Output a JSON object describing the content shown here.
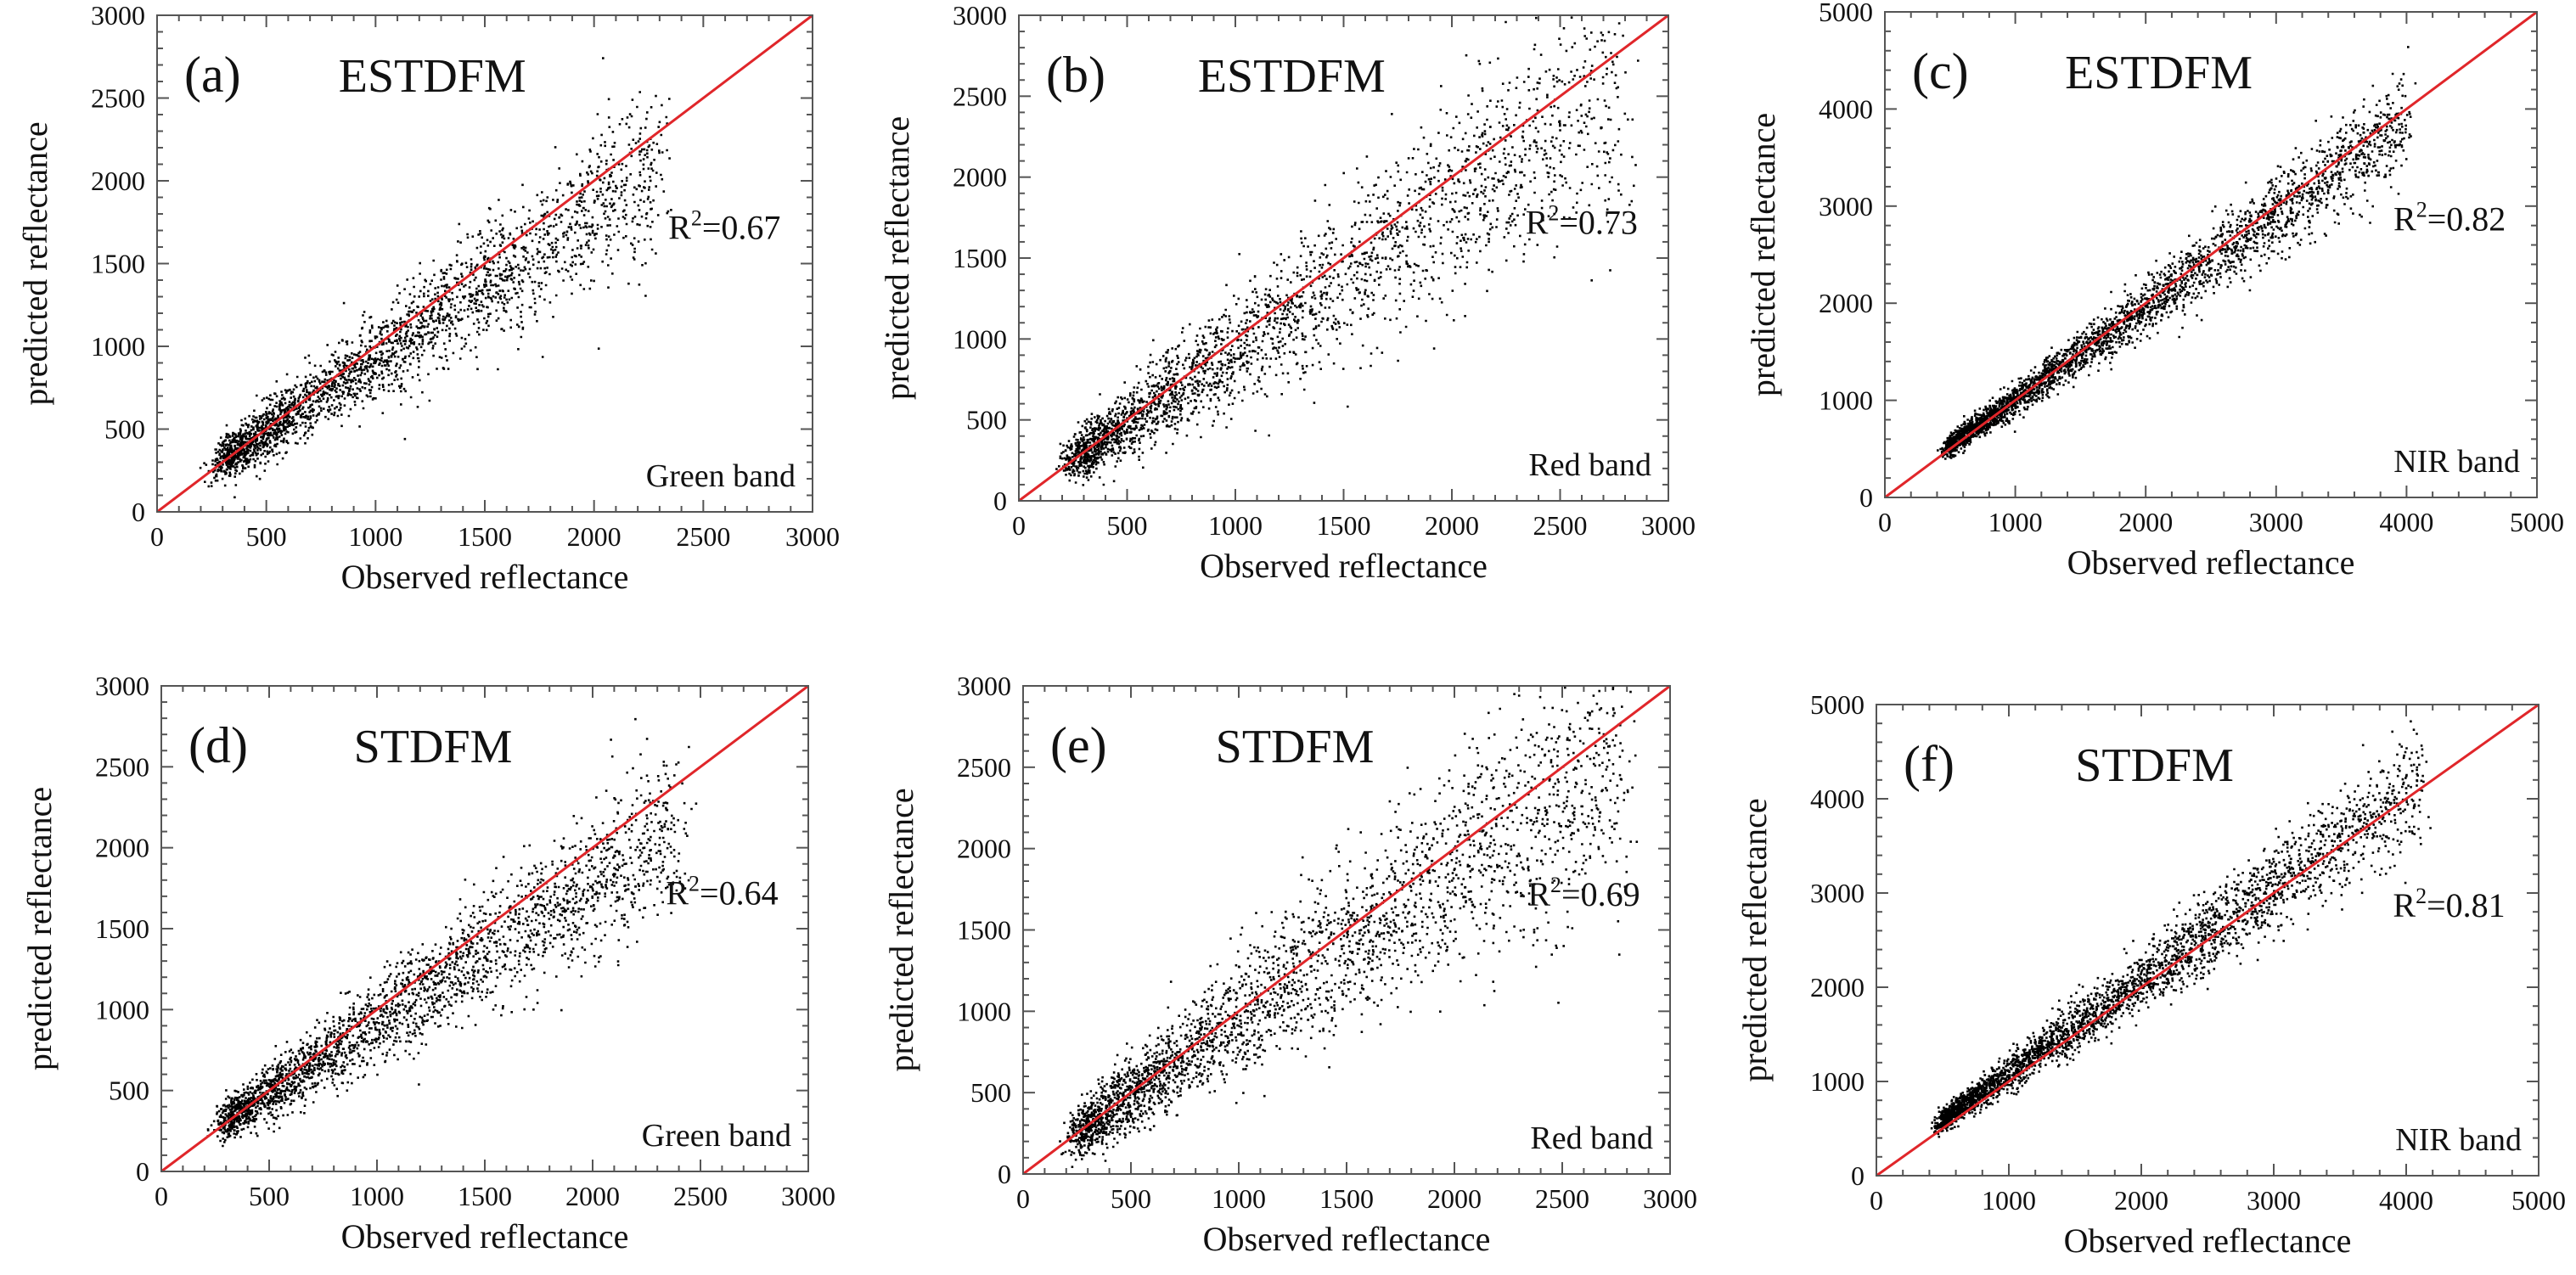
{
  "figure": {
    "panels_note": ""
  },
  "chart_data": [
    {
      "type": "scatter",
      "panel": "(a)",
      "method": "ESTDFM",
      "band": "Green band",
      "r2": {
        "base": "R",
        "sup": "2",
        "rest": "=0.67"
      },
      "xlabel": "Observed reflectance",
      "ylabel": "predicted reflectance",
      "xlim": [
        0,
        3000
      ],
      "ylim": [
        0,
        3000
      ],
      "xticks": [
        0,
        500,
        1000,
        1500,
        2000,
        2500,
        3000
      ],
      "yticks": [
        0,
        500,
        1000,
        1500,
        2000,
        2500,
        3000
      ],
      "grid": false,
      "reference_line": {
        "type": "1:1",
        "color": "#e0262a"
      },
      "point_color": "#000000",
      "cloud": {
        "xmin": 300,
        "xmax": 2300,
        "slope": 0.88,
        "intercept": 60,
        "spread": 0.22,
        "density": 1.0
      }
    },
    {
      "type": "scatter",
      "panel": "(b)",
      "method": "ESTDFM",
      "band": "Red band",
      "r2": {
        "base": "R",
        "sup": "2",
        "rest": "=0.73"
      },
      "xlabel": "Observed reflectance",
      "ylabel": "predicted reflectance",
      "xlim": [
        0,
        3000
      ],
      "ylim": [
        0,
        3000
      ],
      "xticks": [
        0,
        500,
        1000,
        1500,
        2000,
        2500,
        3000
      ],
      "yticks": [
        0,
        500,
        1000,
        1500,
        2000,
        2500,
        3000
      ],
      "grid": false,
      "reference_line": {
        "type": "1:1",
        "color": "#e0262a"
      },
      "point_color": "#000000",
      "cloud": {
        "xmin": 260,
        "xmax": 2800,
        "slope": 0.9,
        "intercept": 50,
        "spread": 0.28,
        "density": 1.0
      }
    },
    {
      "type": "scatter",
      "panel": "(c)",
      "method": "ESTDFM",
      "band": "NIR band",
      "r2": {
        "base": "R",
        "sup": "2",
        "rest": "=0.82"
      },
      "xlabel": "Observed reflectance",
      "ylabel": "predicted reflectance",
      "xlim": [
        0,
        5000
      ],
      "ylim": [
        0,
        5000
      ],
      "xticks": [
        0,
        1000,
        2000,
        3000,
        4000,
        5000
      ],
      "yticks": [
        0,
        1000,
        2000,
        3000,
        4000,
        5000
      ],
      "grid": false,
      "reference_line": {
        "type": "1:1",
        "color": "#e0262a"
      },
      "point_color": "#000000",
      "cloud": {
        "xmin": 500,
        "xmax": 4000,
        "slope": 0.95,
        "intercept": 80,
        "spread": 0.14,
        "density": 1.2
      }
    },
    {
      "type": "scatter",
      "panel": "(d)",
      "method": "STDFM",
      "band": "Green band",
      "r2": {
        "base": "R",
        "sup": "2",
        "rest": "=0.64"
      },
      "xlabel": "Observed reflectance",
      "ylabel": "predicted reflectance",
      "xlim": [
        0,
        3000
      ],
      "ylim": [
        0,
        3000
      ],
      "xticks": [
        0,
        500,
        1000,
        1500,
        2000,
        2500,
        3000
      ],
      "yticks": [
        0,
        500,
        1000,
        1500,
        2000,
        2500,
        3000
      ],
      "grid": false,
      "reference_line": {
        "type": "1:1",
        "color": "#e0262a"
      },
      "point_color": "#000000",
      "cloud": {
        "xmin": 300,
        "xmax": 2400,
        "slope": 0.86,
        "intercept": 70,
        "spread": 0.22,
        "density": 1.0
      }
    },
    {
      "type": "scatter",
      "panel": "(e)",
      "method": "STDFM",
      "band": "Red band",
      "r2": {
        "base": "R",
        "sup": "2",
        "rest": "=0.69"
      },
      "xlabel": "Observed reflectance",
      "ylabel": "predicted reflectance",
      "xlim": [
        0,
        3000
      ],
      "ylim": [
        0,
        3000
      ],
      "xticks": [
        0,
        500,
        1000,
        1500,
        2000,
        2500,
        3000
      ],
      "yticks": [
        0,
        500,
        1000,
        1500,
        2000,
        2500,
        3000
      ],
      "grid": false,
      "reference_line": {
        "type": "1:1",
        "color": "#e0262a"
      },
      "point_color": "#000000",
      "cloud": {
        "xmin": 260,
        "xmax": 2800,
        "slope": 0.92,
        "intercept": 40,
        "spread": 0.3,
        "density": 1.1
      }
    },
    {
      "type": "scatter",
      "panel": "(f)",
      "method": "STDFM",
      "band": "NIR band",
      "r2": {
        "base": "R",
        "sup": "2",
        "rest": "=0.81"
      },
      "xlabel": "Observed reflectance",
      "ylabel": "predicted reflectance",
      "xlim": [
        0,
        5000
      ],
      "ylim": [
        0,
        5000
      ],
      "xticks": [
        0,
        1000,
        2000,
        3000,
        4000,
        5000
      ],
      "yticks": [
        0,
        1000,
        2000,
        3000,
        4000,
        5000
      ],
      "grid": false,
      "reference_line": {
        "type": "1:1",
        "color": "#e0262a"
      },
      "point_color": "#000000",
      "cloud": {
        "xmin": 500,
        "xmax": 4100,
        "slope": 0.98,
        "intercept": 120,
        "spread": 0.16,
        "density": 1.2
      }
    }
  ]
}
